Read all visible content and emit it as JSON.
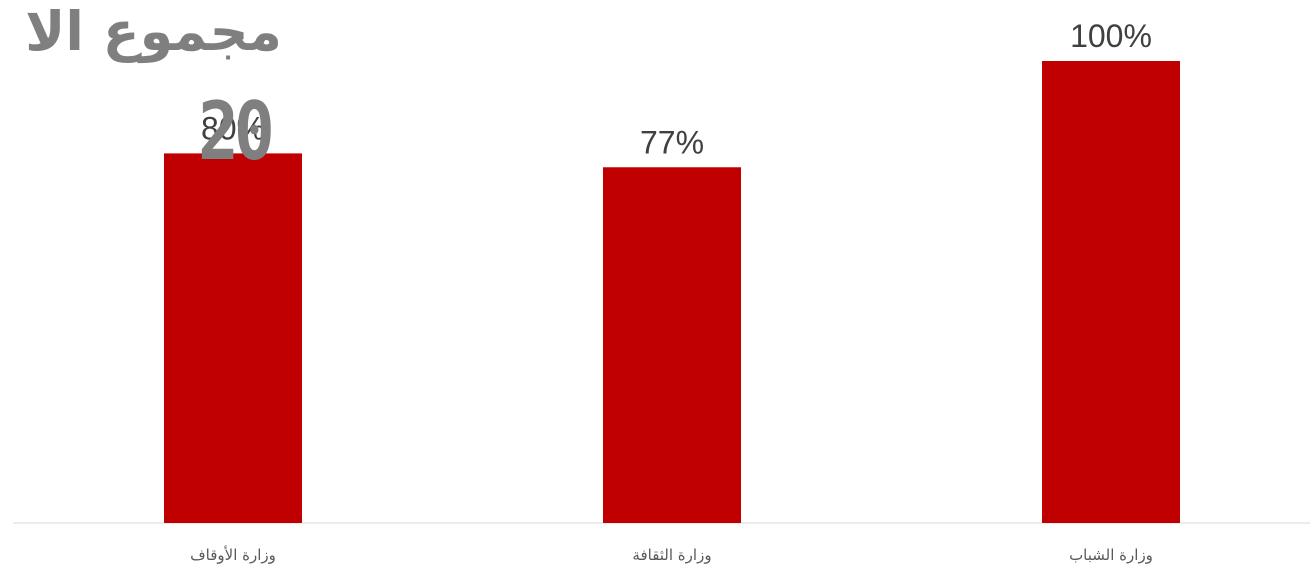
{
  "overlay": {
    "title_text": "مجموع الا",
    "big_number": "20"
  },
  "chart_data": {
    "type": "bar",
    "categories": [
      "وزارة الأوقاف",
      "وزارة الثقافة",
      "وزارة الشباب"
    ],
    "values": [
      80,
      77,
      100
    ],
    "data_labels": [
      "80%",
      "77%",
      "100%"
    ],
    "ylim": [
      0,
      110
    ],
    "grid": false,
    "legend": "none",
    "bar_color": "#c00000",
    "label_color": "#404040",
    "axis_color": "#d9d9d9"
  }
}
